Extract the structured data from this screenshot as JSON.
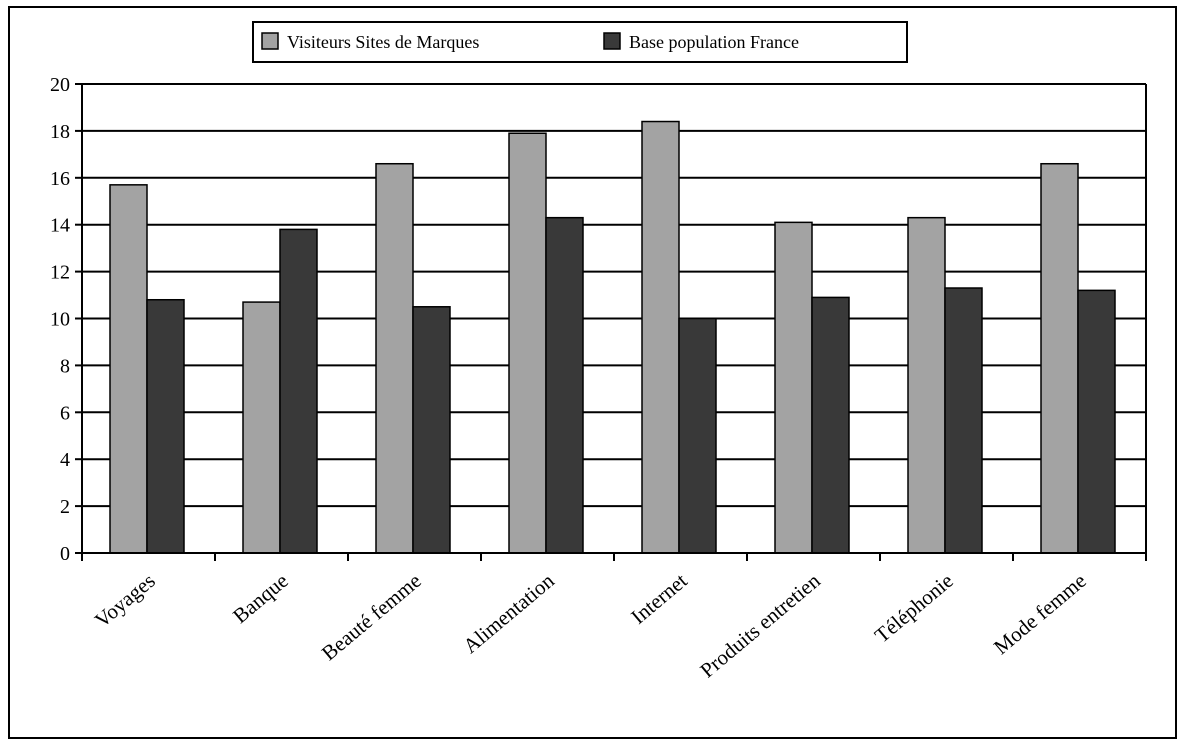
{
  "chart_data": {
    "type": "bar",
    "categories": [
      "Voyages",
      "Banque",
      "Beauté femme",
      "Alimentation",
      "Internet",
      "Produits entretien",
      "Téléphonie",
      "Mode femme"
    ],
    "series": [
      {
        "name": "Visiteurs Sites de Marques",
        "color": "#a3a3a3",
        "values": [
          15.7,
          10.7,
          16.6,
          17.9,
          18.4,
          14.1,
          14.3,
          16.6
        ]
      },
      {
        "name": "Base population France",
        "color": "#393939",
        "values": [
          10.8,
          13.8,
          10.5,
          14.3,
          10.0,
          10.9,
          11.3,
          11.2
        ]
      }
    ],
    "y_ticks": [
      "0",
      "2",
      "4",
      "6",
      "8",
      "10",
      "12",
      "14",
      "16",
      "18",
      "20"
    ],
    "ylim": [
      0,
      20
    ],
    "grid": true,
    "legend_position": "top-center"
  }
}
